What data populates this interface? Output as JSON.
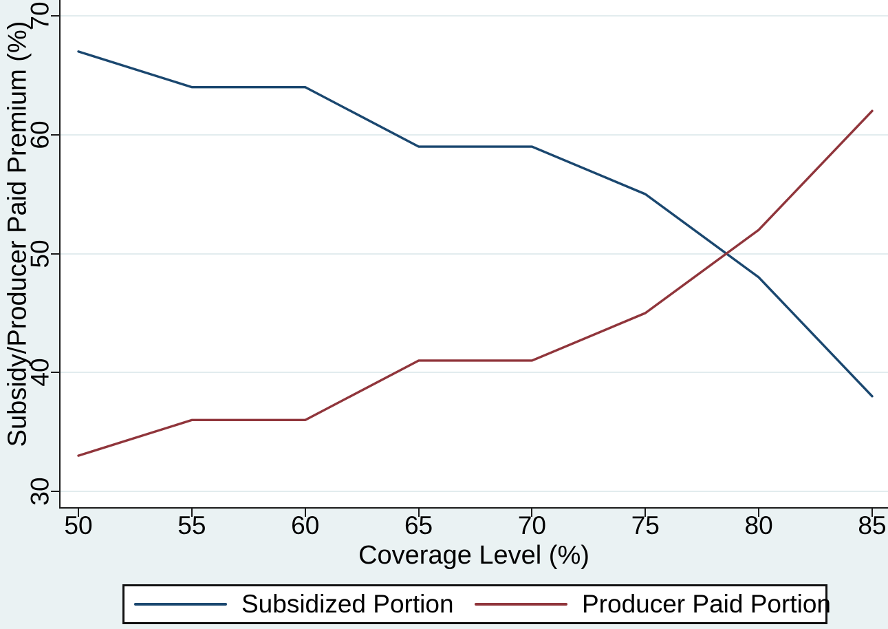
{
  "chart_data": {
    "type": "line",
    "title": "",
    "xlabel": "Coverage Level (%)",
    "ylabel": "Subsidy/Producer Paid Premium (%)",
    "x": [
      50,
      55,
      60,
      65,
      70,
      75,
      80,
      85
    ],
    "x_tick_labels": [
      "50",
      "55",
      "60",
      "65",
      "70",
      "75",
      "80",
      "85"
    ],
    "y_ticks": [
      30,
      40,
      50,
      60,
      70
    ],
    "y_tick_labels": [
      "30",
      "40",
      "50",
      "60",
      "70"
    ],
    "series": [
      {
        "name": "Subsidized Portion",
        "color": "#1a476f",
        "values": [
          67,
          64,
          64,
          59,
          59,
          55,
          48,
          38
        ]
      },
      {
        "name": "Producer Paid Portion",
        "color": "#90353b",
        "values": [
          33,
          36,
          36,
          41,
          41,
          45,
          52,
          62
        ]
      }
    ],
    "xlim": [
      50,
      85
    ],
    "ylim": [
      30,
      70
    ],
    "grid": "horizontal-only",
    "legend_position": "bottom",
    "colors": {
      "background": "#eaf2f3",
      "plot_background": "#ffffff",
      "gridline": "#e2ecee",
      "axis": "#1a1a1a",
      "text": "#000000"
    }
  }
}
